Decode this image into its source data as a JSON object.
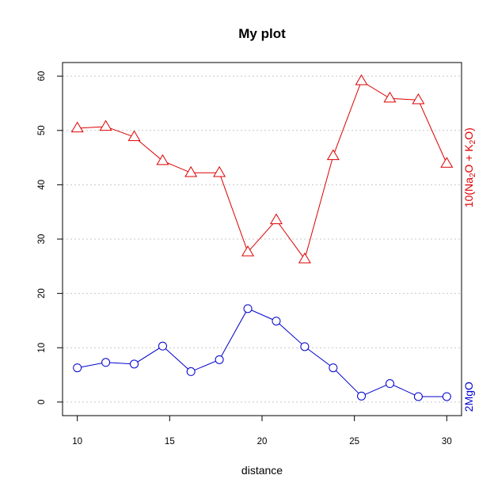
{
  "chart_data": {
    "type": "line",
    "title": "My plot",
    "xlabel": "distance",
    "ylabel": "",
    "xlim": [
      9.2,
      30.8
    ],
    "ylim": [
      -2.5,
      62.5
    ],
    "x_ticks": [
      10,
      15,
      20,
      25,
      30
    ],
    "y_ticks": [
      0,
      10,
      20,
      30,
      40,
      50,
      60
    ],
    "grid": "horizontal-dotted",
    "x": [
      10,
      11.54,
      13.08,
      14.62,
      16.15,
      17.69,
      19.23,
      20.77,
      22.31,
      23.85,
      25.38,
      26.92,
      28.46,
      30
    ],
    "series": [
      {
        "name_parts": [
          "10(Na",
          "2",
          "O + K",
          "2",
          "O)"
        ],
        "color": "#dd0000",
        "marker": "triangle",
        "values": [
          50.4,
          50.7,
          48.8,
          44.4,
          42.2,
          42.2,
          27.6,
          33.5,
          26.3,
          45.3,
          59.1,
          55.9,
          55.6,
          43.9
        ]
      },
      {
        "name": "2MgO",
        "color": "#0000cc",
        "marker": "circle",
        "values": [
          6.3,
          7.3,
          7.0,
          10.3,
          5.6,
          7.8,
          17.2,
          14.9,
          10.2,
          6.3,
          1.1,
          3.4,
          1.0,
          1.0
        ]
      }
    ]
  }
}
